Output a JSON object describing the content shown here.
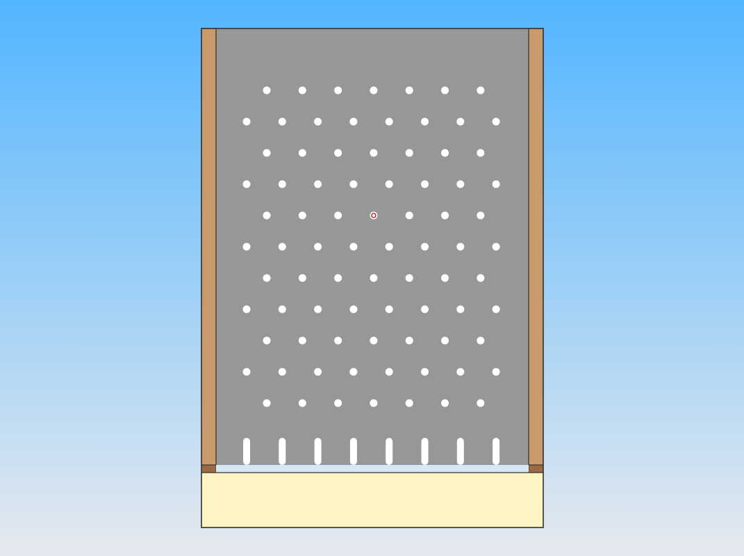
{
  "scene": {
    "sky_top_color": "#52b5ff",
    "sky_bottom_color": "#e6e9ee"
  },
  "board": {
    "playfield_color": "#979797",
    "wall_color": "#c99a6c",
    "wall_cap_color": "#9a6a45",
    "tray_color": "#fdf3c3",
    "gap_color": "#d6e8f4",
    "outline_color": "#2e2e2e",
    "peg_color": "#ffffff",
    "peg_rows": 11,
    "pegs_per_long_row": 8,
    "pegs_per_short_row": 7,
    "slot_dividers": 8
  },
  "ball": {
    "color": "#cc2222",
    "row": 4,
    "column": 3
  }
}
